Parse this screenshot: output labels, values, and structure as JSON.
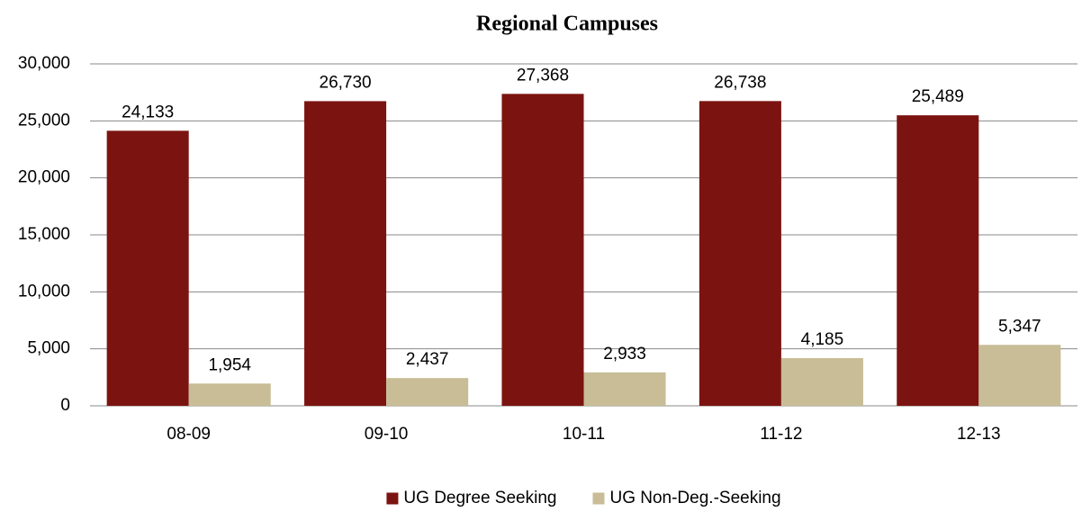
{
  "chart_data": {
    "type": "bar",
    "title": "Regional Campuses",
    "categories": [
      "08-09",
      "09-10",
      "10-11",
      "11-12",
      "12-13"
    ],
    "series": [
      {
        "name": "UG Degree Seeking",
        "color": "#7b1410",
        "values": [
          24133,
          26730,
          27368,
          26738,
          25489
        ],
        "value_labels": [
          "24,133",
          "26,730",
          "27,368",
          "26,738",
          "25,489"
        ]
      },
      {
        "name": "UG Non-Deg.-Seeking",
        "color": "#c8bd96",
        "values": [
          1954,
          2437,
          2933,
          4185,
          5347
        ],
        "value_labels": [
          "1,954",
          "2,437",
          "2,933",
          "4,185",
          "5,347"
        ]
      }
    ],
    "ylim": [
      0,
      30000
    ],
    "yticks": [
      0,
      {
        "value": 5000,
        "label": "5,000"
      },
      {
        "value": 10000,
        "label": "10,000"
      },
      {
        "value": 15000,
        "label": "15,000"
      },
      {
        "value": 20000,
        "label": "20,000"
      },
      {
        "value": 25000,
        "label": "25,000"
      },
      {
        "value": 30000,
        "label": "30,000"
      }
    ],
    "grid": true,
    "legend": "bottom"
  }
}
